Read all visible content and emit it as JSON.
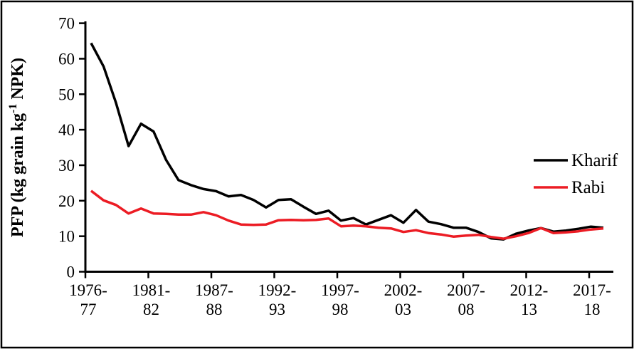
{
  "figure": {
    "background": "#ffffff",
    "border_color": "#000000"
  },
  "chart_data": {
    "type": "line",
    "title": "",
    "xlabel": "",
    "ylabel_parts": {
      "prefix": "PFP (kg grain kg",
      "superscript": "-1",
      "suffix": " NPK)"
    },
    "ylim": [
      0,
      70
    ],
    "y_ticks": [
      0,
      10,
      20,
      30,
      40,
      50,
      60,
      70
    ],
    "x_tick_labels": [
      [
        "1976-",
        "77"
      ],
      [
        "1981-",
        "82"
      ],
      [
        "1987-",
        "88"
      ],
      [
        "1992-",
        "93"
      ],
      [
        "1997-",
        "98"
      ],
      [
        "2002-",
        "03"
      ],
      [
        "2007-",
        "08"
      ],
      [
        "2012-",
        "13"
      ],
      [
        "2017-",
        "18"
      ]
    ],
    "categories": [
      "1976-77",
      "1977-78",
      "1978-79",
      "1979-80",
      "1980-81",
      "1981-82",
      "1982-83",
      "1983-84",
      "1984-85",
      "1985-86",
      "1986-87",
      "1987-88",
      "1988-89",
      "1989-90",
      "1990-91",
      "1991-92",
      "1992-93",
      "1993-94",
      "1994-95",
      "1995-96",
      "1996-97",
      "1997-98",
      "1998-99",
      "1999-00",
      "2000-01",
      "2001-02",
      "2002-03",
      "2003-04",
      "2004-05",
      "2005-06",
      "2006-07",
      "2007-08",
      "2008-09",
      "2009-10",
      "2010-11",
      "2011-12",
      "2012-13",
      "2013-14",
      "2014-15",
      "2015-16",
      "2016-17",
      "2017-18"
    ],
    "series": [
      {
        "name": "Kharif",
        "color": "#000000",
        "values": [
          64.4,
          57.8,
          47.5,
          35.4,
          41.7,
          39.5,
          31.5,
          25.8,
          24.4,
          23.3,
          22.7,
          21.2,
          21.6,
          20.2,
          18.1,
          20.2,
          20.4,
          18.3,
          16.3,
          17.2,
          14.4,
          15.1,
          13.3,
          14.6,
          15.9,
          13.8,
          17.4,
          14.1,
          13.4,
          12.4,
          12.4,
          11.2,
          9.4,
          9.1,
          10.7,
          11.6,
          12.3,
          11.3,
          11.6,
          12.1,
          12.7,
          12.4
        ]
      },
      {
        "name": "Rabi",
        "color": "#ec1c24",
        "values": [
          22.8,
          20.1,
          18.8,
          16.4,
          17.8,
          16.4,
          16.3,
          16.1,
          16.1,
          16.8,
          15.9,
          14.4,
          13.3,
          13.2,
          13.3,
          14.5,
          14.6,
          14.5,
          14.6,
          15.0,
          12.8,
          13.0,
          12.8,
          12.4,
          12.2,
          11.2,
          11.7,
          10.9,
          10.5,
          9.9,
          10.2,
          10.4,
          9.8,
          9.3,
          10.0,
          10.9,
          12.3,
          10.9,
          11.1,
          11.4,
          11.9,
          12.2
        ]
      }
    ],
    "legend": [
      "Kharif",
      "Rabi"
    ],
    "legend_position": "right",
    "grid": false
  }
}
